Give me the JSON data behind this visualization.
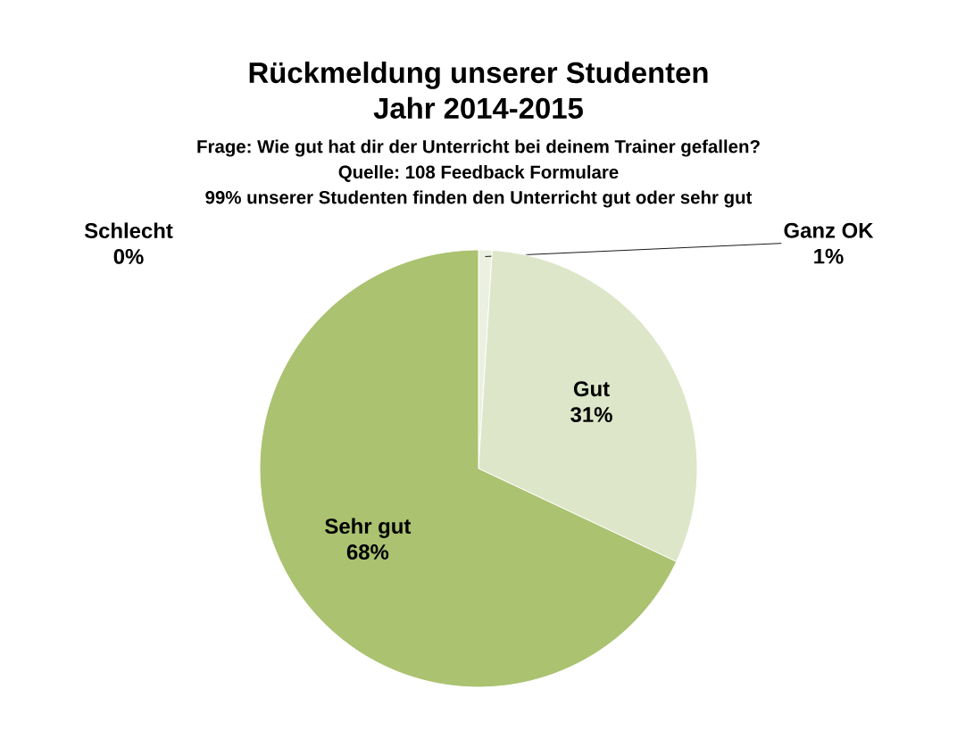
{
  "chart_data": {
    "type": "pie",
    "title": "Rückmeldung unserer Studenten Jahr 2014-2015",
    "subtitle": "Frage: Wie gut hat dir der Unterricht bei deinem Trainer gefallen?",
    "annotations": [
      "Quelle: 108 Feedback Formulare",
      "99% unserer Studenten finden den Unterricht gut oder sehr gut"
    ],
    "categories": [
      "Schlecht",
      "Ganz OK",
      "Gut",
      "Sehr gut"
    ],
    "values": [
      0,
      1,
      31,
      68
    ],
    "colors": [
      null,
      "#ecf0e1",
      "#dde6c8",
      "#abc270"
    ],
    "value_labels": [
      "0%",
      "1%",
      "31%",
      "68%"
    ]
  }
}
